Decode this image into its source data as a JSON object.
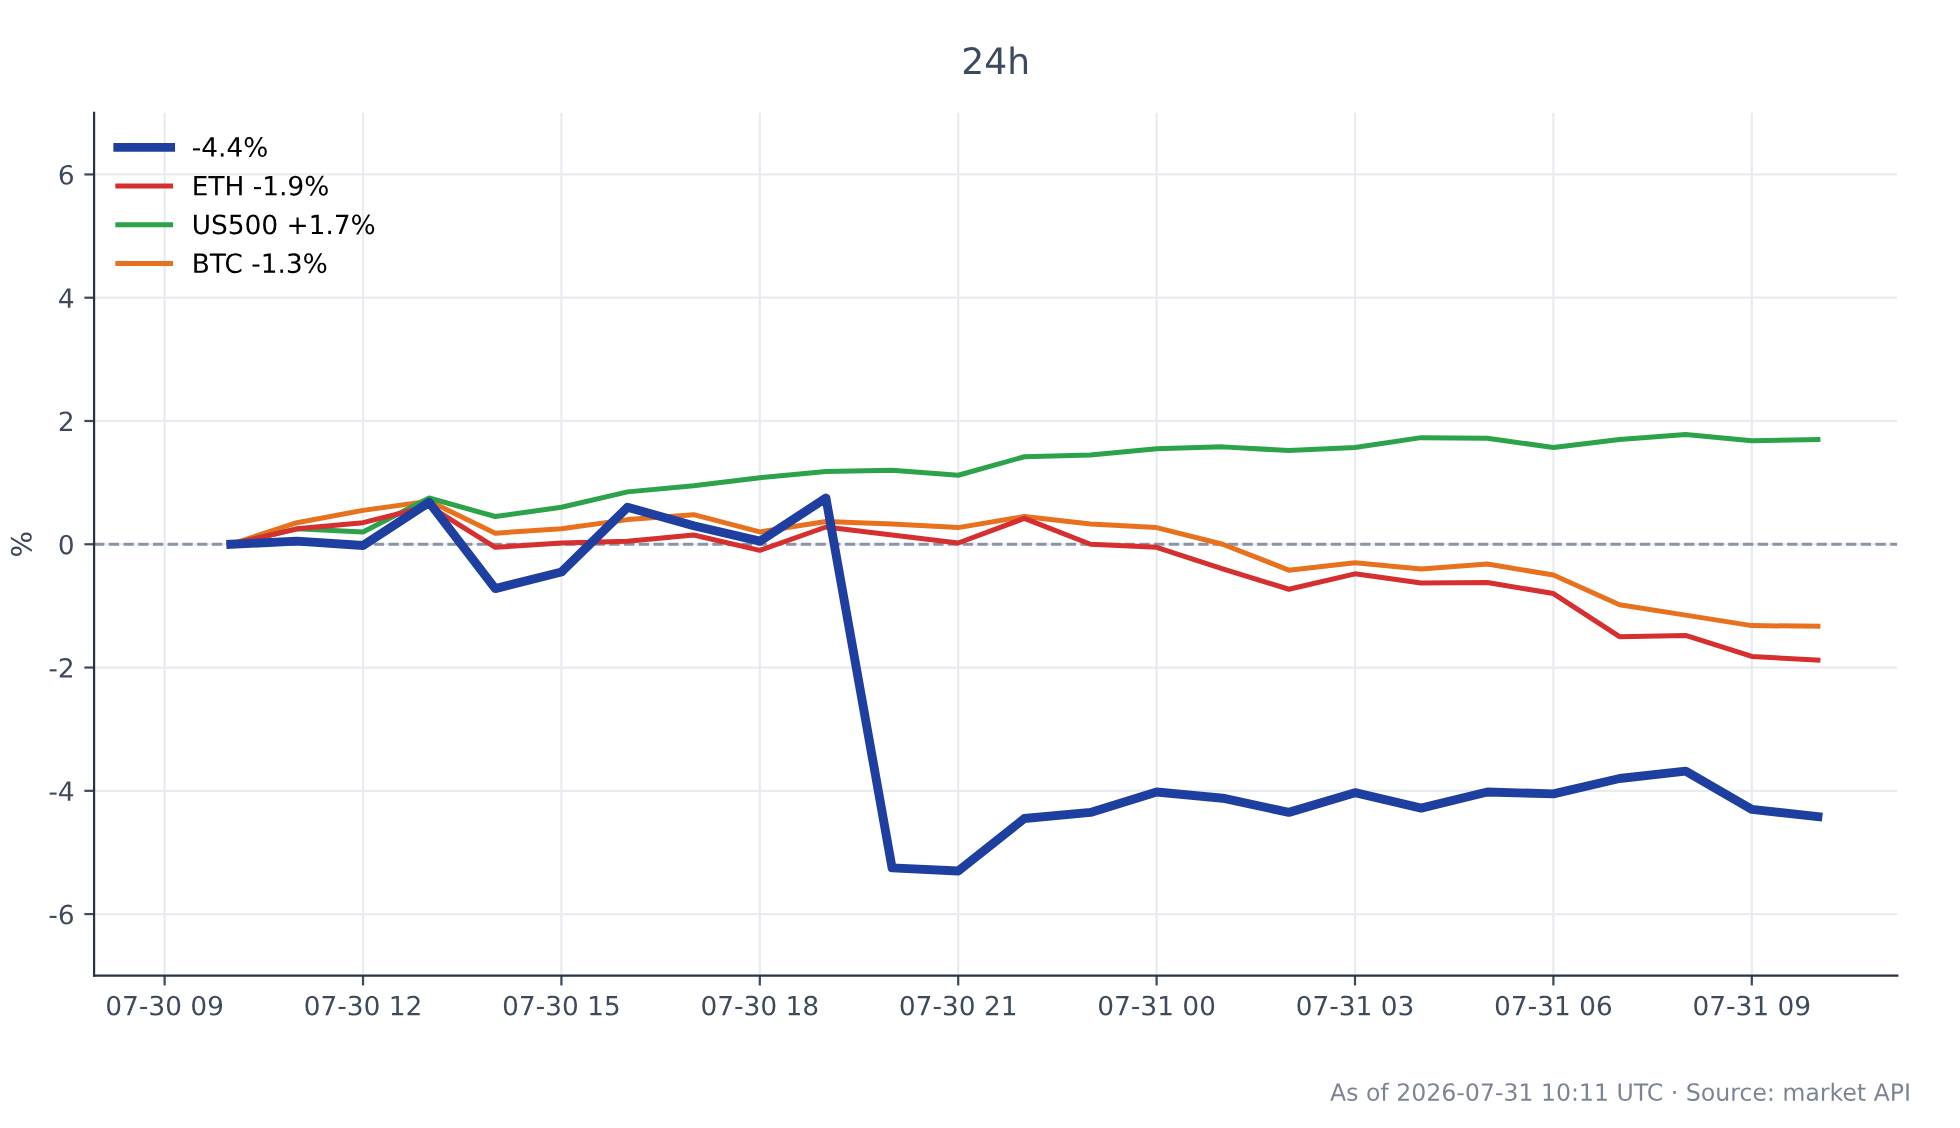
{
  "chart_data": {
    "type": "line",
    "title": "24h",
    "ylabel": "%",
    "x": [
      "2026-07-30T10:00",
      "2026-07-30T11:00",
      "2026-07-30T12:00",
      "2026-07-30T13:00",
      "2026-07-30T14:00",
      "2026-07-30T15:00",
      "2026-07-30T16:00",
      "2026-07-30T17:00",
      "2026-07-30T18:00",
      "2026-07-30T19:00",
      "2026-07-30T20:00",
      "2026-07-30T21:00",
      "2026-07-30T22:00",
      "2026-07-30T23:00",
      "2026-07-31T00:00",
      "2026-07-31T01:00",
      "2026-07-31T02:00",
      "2026-07-31T03:00",
      "2026-07-31T04:00",
      "2026-07-31T05:00",
      "2026-07-31T06:00",
      "2026-07-31T07:00",
      "2026-07-31T08:00",
      "2026-07-31T09:00",
      "2026-07-31T10:00"
    ],
    "series": [
      {
        "name": "-4.4%",
        "color": "#1f3fa0",
        "values": [
          0,
          0.05,
          -0.02,
          0.68,
          -0.72,
          -0.45,
          0.6,
          0.3,
          0.05,
          0.75,
          -5.25,
          -5.3,
          -4.45,
          -4.35,
          -4.02,
          -4.12,
          -4.35,
          -4.03,
          -4.28,
          -4.02,
          -4.05,
          -3.8,
          -3.68,
          -4.3,
          -4.42
        ]
      },
      {
        "name": "ETH -1.9%",
        "color": "#d62f2f",
        "values": [
          0,
          0.25,
          0.35,
          0.62,
          -0.05,
          0.02,
          0.05,
          0.15,
          -0.1,
          0.28,
          0.15,
          0.02,
          0.42,
          0.0,
          -0.05,
          -0.4,
          -0.73,
          -0.48,
          -0.63,
          -0.62,
          -0.8,
          -1.5,
          -1.48,
          -1.82,
          -1.88
        ]
      },
      {
        "name": "US500 +1.7%",
        "color": "#2ca34a",
        "values": [
          0,
          0.25,
          0.2,
          0.75,
          0.45,
          0.6,
          0.85,
          0.95,
          1.08,
          1.18,
          1.2,
          1.12,
          1.42,
          1.45,
          1.55,
          1.58,
          1.52,
          1.57,
          1.73,
          1.72,
          1.57,
          1.7,
          1.78,
          1.68,
          1.7
        ]
      },
      {
        "name": "BTC -1.3%",
        "color": "#e8711e",
        "values": [
          0,
          0.35,
          0.55,
          0.7,
          0.18,
          0.25,
          0.4,
          0.48,
          0.2,
          0.37,
          0.33,
          0.27,
          0.45,
          0.33,
          0.27,
          0.0,
          -0.42,
          -0.3,
          -0.4,
          -0.32,
          -0.5,
          -0.98,
          -1.15,
          -1.32,
          -1.33
        ]
      }
    ],
    "xlim": [
      "2026-07-30T07:56",
      "2026-07-31T11:12"
    ],
    "xticks": [
      {
        "value": "2026-07-30T09:00",
        "label": "07-30 09"
      },
      {
        "value": "2026-07-30T12:00",
        "label": "07-30 12"
      },
      {
        "value": "2026-07-30T15:00",
        "label": "07-30 15"
      },
      {
        "value": "2026-07-30T18:00",
        "label": "07-30 18"
      },
      {
        "value": "2026-07-30T21:00",
        "label": "07-30 21"
      },
      {
        "value": "2026-07-31T00:00",
        "label": "07-31 00"
      },
      {
        "value": "2026-07-31T03:00",
        "label": "07-31 03"
      },
      {
        "value": "2026-07-31T06:00",
        "label": "07-31 06"
      },
      {
        "value": "2026-07-31T09:00",
        "label": "07-31 09"
      }
    ],
    "ylim": [
      -7,
      7
    ],
    "yticks": [
      -6,
      -4,
      -2,
      0,
      2,
      4,
      6
    ],
    "ref_lines": [
      {
        "axis": "y",
        "value": 0,
        "color": "#8a94a6",
        "line_style": "dashed"
      }
    ],
    "grid": true,
    "legend": "top left",
    "marker": "none",
    "line_style": "solid",
    "annotations": [
      "As of 2026-07-31 10:11 UTC · Source: market API"
    ]
  }
}
